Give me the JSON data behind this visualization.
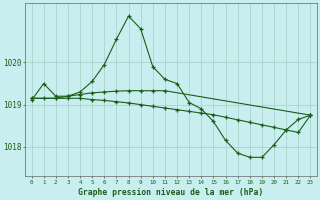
{
  "title": "Graphe pression niveau de la mer (hPa)",
  "background_color": "#c8eef0",
  "grid_color": "#aad4cc",
  "line_color": "#1a5e1a",
  "x_labels": [
    "0",
    "1",
    "2",
    "3",
    "4",
    "5",
    "6",
    "7",
    "8",
    "9",
    "10",
    "11",
    "12",
    "13",
    "14",
    "15",
    "16",
    "17",
    "18",
    "19",
    "20",
    "21",
    "22",
    "23"
  ],
  "ylim": [
    1017.3,
    1021.4
  ],
  "yticks": [
    1018,
    1019,
    1020
  ],
  "series1_x": [
    0,
    1,
    2,
    3,
    4,
    5,
    6,
    7,
    8,
    9,
    10,
    11,
    12,
    13,
    14,
    15,
    16,
    17,
    18,
    19,
    20,
    21,
    22,
    23
  ],
  "series1_y": [
    1019.1,
    1019.5,
    1019.2,
    1019.2,
    1019.3,
    1019.55,
    1019.95,
    1020.55,
    1021.1,
    1020.8,
    1019.9,
    1019.6,
    1019.5,
    1019.05,
    1018.9,
    1018.6,
    1018.15,
    1017.85,
    1017.75,
    1017.75,
    1018.05,
    1018.4,
    1018.65,
    1018.75
  ],
  "series2_x": [
    0,
    1,
    2,
    3,
    4,
    5,
    6,
    7,
    8,
    9,
    10,
    11,
    12,
    13,
    14,
    15,
    16,
    17,
    18,
    19,
    20,
    21,
    22,
    23
  ],
  "series2_y": [
    1019.15,
    1019.15,
    1019.15,
    1019.15,
    1019.15,
    1019.12,
    1019.1,
    1019.07,
    1019.04,
    1019.0,
    1018.96,
    1018.92,
    1018.88,
    1018.84,
    1018.8,
    1018.76,
    1018.7,
    1018.64,
    1018.58,
    1018.52,
    1018.46,
    1018.4,
    1018.34,
    1018.75
  ],
  "series3_x": [
    0,
    2,
    3,
    4,
    5,
    6,
    7,
    8,
    9,
    10,
    11,
    23
  ],
  "series3_y": [
    1019.15,
    1019.15,
    1019.2,
    1019.24,
    1019.28,
    1019.3,
    1019.32,
    1019.33,
    1019.33,
    1019.33,
    1019.33,
    1018.75
  ],
  "marker": "+",
  "markersize": 3,
  "linewidth": 0.8
}
